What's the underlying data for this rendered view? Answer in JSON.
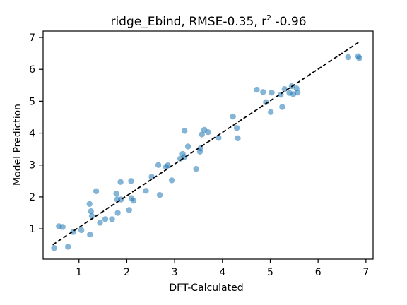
{
  "chart_data": {
    "type": "scatter",
    "title": "ridge_Ebind, RMSE-0.35, r",
    "title_sup": "2",
    "title_suffix": " -0.96",
    "xlabel": "DFT-Calculated",
    "ylabel": "Model Prediction",
    "xlim": [
      0.25,
      7.15
    ],
    "ylim": [
      0.05,
      7.2
    ],
    "xticks": [
      1,
      2,
      3,
      4,
      5,
      6,
      7
    ],
    "yticks": [
      1,
      2,
      3,
      4,
      5,
      6,
      7
    ],
    "grid": false,
    "point_color": "#1f77b4",
    "fit_line": {
      "x": [
        0.45,
        6.85
      ],
      "y": [
        0.5,
        6.85
      ],
      "style": "dashed",
      "color": "#000000"
    },
    "points": [
      [
        0.48,
        0.4
      ],
      [
        0.58,
        1.08
      ],
      [
        0.66,
        1.06
      ],
      [
        0.77,
        0.44
      ],
      [
        0.88,
        0.9
      ],
      [
        1.05,
        0.96
      ],
      [
        1.22,
        1.78
      ],
      [
        1.23,
        0.82
      ],
      [
        1.25,
        1.55
      ],
      [
        1.27,
        1.4
      ],
      [
        1.36,
        2.18
      ],
      [
        1.44,
        1.19
      ],
      [
        1.55,
        1.3
      ],
      [
        1.69,
        1.3
      ],
      [
        1.78,
        2.1
      ],
      [
        1.8,
        1.92
      ],
      [
        1.81,
        1.5
      ],
      [
        1.87,
        2.47
      ],
      [
        1.88,
        1.92
      ],
      [
        2.05,
        1.59
      ],
      [
        2.09,
        2.5
      ],
      [
        2.1,
        1.96
      ],
      [
        2.14,
        1.88
      ],
      [
        2.4,
        2.19
      ],
      [
        2.52,
        2.63
      ],
      [
        2.66,
        3.0
      ],
      [
        2.69,
        2.06
      ],
      [
        2.82,
        2.94
      ],
      [
        2.86,
        2.99
      ],
      [
        2.94,
        2.52
      ],
      [
        3.12,
        3.2
      ],
      [
        3.17,
        3.35
      ],
      [
        3.2,
        3.25
      ],
      [
        3.21,
        4.07
      ],
      [
        3.28,
        3.58
      ],
      [
        3.45,
        2.88
      ],
      [
        3.53,
        3.42
      ],
      [
        3.54,
        3.52
      ],
      [
        3.57,
        3.96
      ],
      [
        3.62,
        4.1
      ],
      [
        3.7,
        4.03
      ],
      [
        3.92,
        3.85
      ],
      [
        4.22,
        4.52
      ],
      [
        4.3,
        4.16
      ],
      [
        4.32,
        3.84
      ],
      [
        4.72,
        5.36
      ],
      [
        4.85,
        5.29
      ],
      [
        4.91,
        4.97
      ],
      [
        5.01,
        4.66
      ],
      [
        5.03,
        5.27
      ],
      [
        5.22,
        5.2
      ],
      [
        5.25,
        4.82
      ],
      [
        5.3,
        5.38
      ],
      [
        5.4,
        5.26
      ],
      [
        5.45,
        5.47
      ],
      [
        5.48,
        5.22
      ],
      [
        5.55,
        5.4
      ],
      [
        5.57,
        5.27
      ],
      [
        6.63,
        6.38
      ],
      [
        6.84,
        6.41
      ],
      [
        6.86,
        6.35
      ]
    ]
  }
}
